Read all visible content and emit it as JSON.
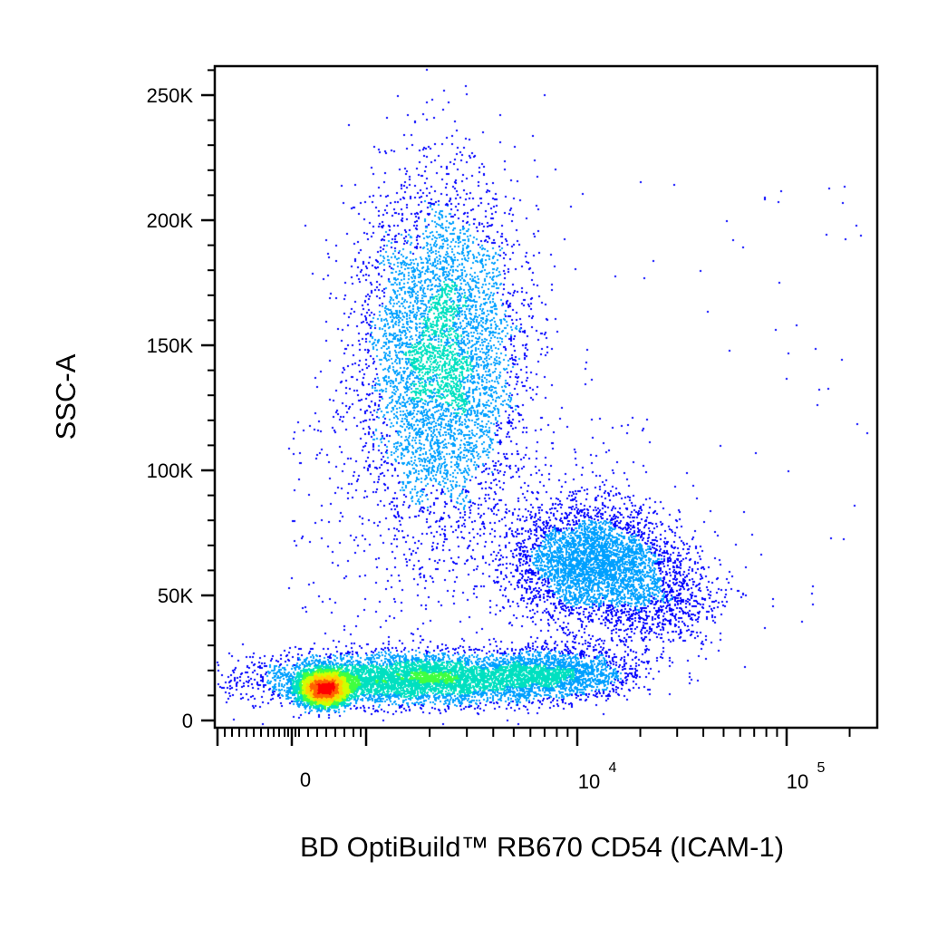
{
  "chart_data": {
    "type": "scatter",
    "title": "",
    "xlabel": "BD OptiBuild™ RB670 CD54 (ICAM-1)",
    "ylabel": "SSC-A",
    "x_scale": "biexponential",
    "x_ticks": [
      {
        "value": 0,
        "label": "0"
      },
      {
        "value": 10000,
        "label": "10",
        "exp": "4"
      },
      {
        "value": 100000,
        "label": "10",
        "exp": "5"
      }
    ],
    "y_ticks": [
      {
        "value": 0,
        "label": "0"
      },
      {
        "value": 50000,
        "label": "50K"
      },
      {
        "value": 100000,
        "label": "100K"
      },
      {
        "value": 150000,
        "label": "150K"
      },
      {
        "value": 200000,
        "label": "200K"
      },
      {
        "value": 250000,
        "label": "250K"
      }
    ],
    "ylim": [
      -5000,
      262000
    ],
    "grid": false,
    "colormap": [
      "#0000ff",
      "#00a0ff",
      "#00e0c0",
      "#40ff40",
      "#d0ff00",
      "#ffd000",
      "#ff6000",
      "#ff0000"
    ],
    "populations": [
      {
        "x_center": 1200,
        "y_center": 15000,
        "density": "highest"
      },
      {
        "x_center": 2800,
        "y_center": 20000,
        "density": "high"
      },
      {
        "x_center": 2500,
        "y_center": 145000,
        "density": "high"
      },
      {
        "x_center": 12000,
        "y_center": 68000,
        "density": "medium"
      }
    ]
  }
}
